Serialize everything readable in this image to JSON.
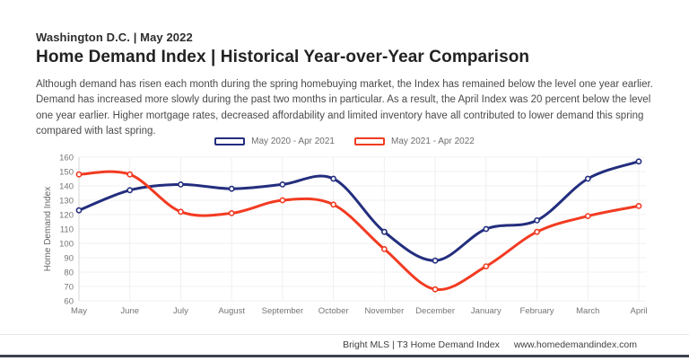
{
  "header": {
    "subtitle": "Washington D.C. | May 2022",
    "title": "Home Demand Index | Historical Year-over-Year Comparison",
    "description": "Although demand has risen each month during the spring homebuying market, the Index has remained below the level one year earlier. Demand has increased more slowly during the past two months in particular. As a result, the April Index was 20 percent below the level one year earlier. Higher mortgage rates, decreased affordability and limited inventory have all contributed to lower demand this spring compared with last spring."
  },
  "chart_data": {
    "type": "line",
    "title": "",
    "xlabel": "",
    "ylabel": "Home Demand Index",
    "ylim": [
      60,
      160
    ],
    "ytick_step": 10,
    "grid": true,
    "legend_position": "top-center",
    "categories": [
      "May",
      "June",
      "July",
      "August",
      "September",
      "October",
      "November",
      "December",
      "January",
      "February",
      "March",
      "April"
    ],
    "series": [
      {
        "name": "May 2020 - Apr 2021",
        "color": "#232e7e",
        "values": [
          123,
          137,
          141,
          138,
          141,
          145,
          108,
          88,
          110,
          116,
          145,
          157
        ]
      },
      {
        "name": "May 2021 - Apr 2022",
        "color": "#f23b22",
        "values": [
          148,
          148,
          122,
          121,
          130,
          127,
          96,
          68,
          84,
          108,
          119,
          126
        ]
      }
    ]
  },
  "footer": {
    "source": "Bright MLS | T3 Home Demand Index",
    "website": "www.homedemandindex.com"
  },
  "colors": {
    "axis_text": "#757575",
    "grid_h": "#f2f2f2",
    "grid_v": "#efefef",
    "axis_line": "#d6d6d6",
    "bottom_bar": "#3c434d"
  }
}
